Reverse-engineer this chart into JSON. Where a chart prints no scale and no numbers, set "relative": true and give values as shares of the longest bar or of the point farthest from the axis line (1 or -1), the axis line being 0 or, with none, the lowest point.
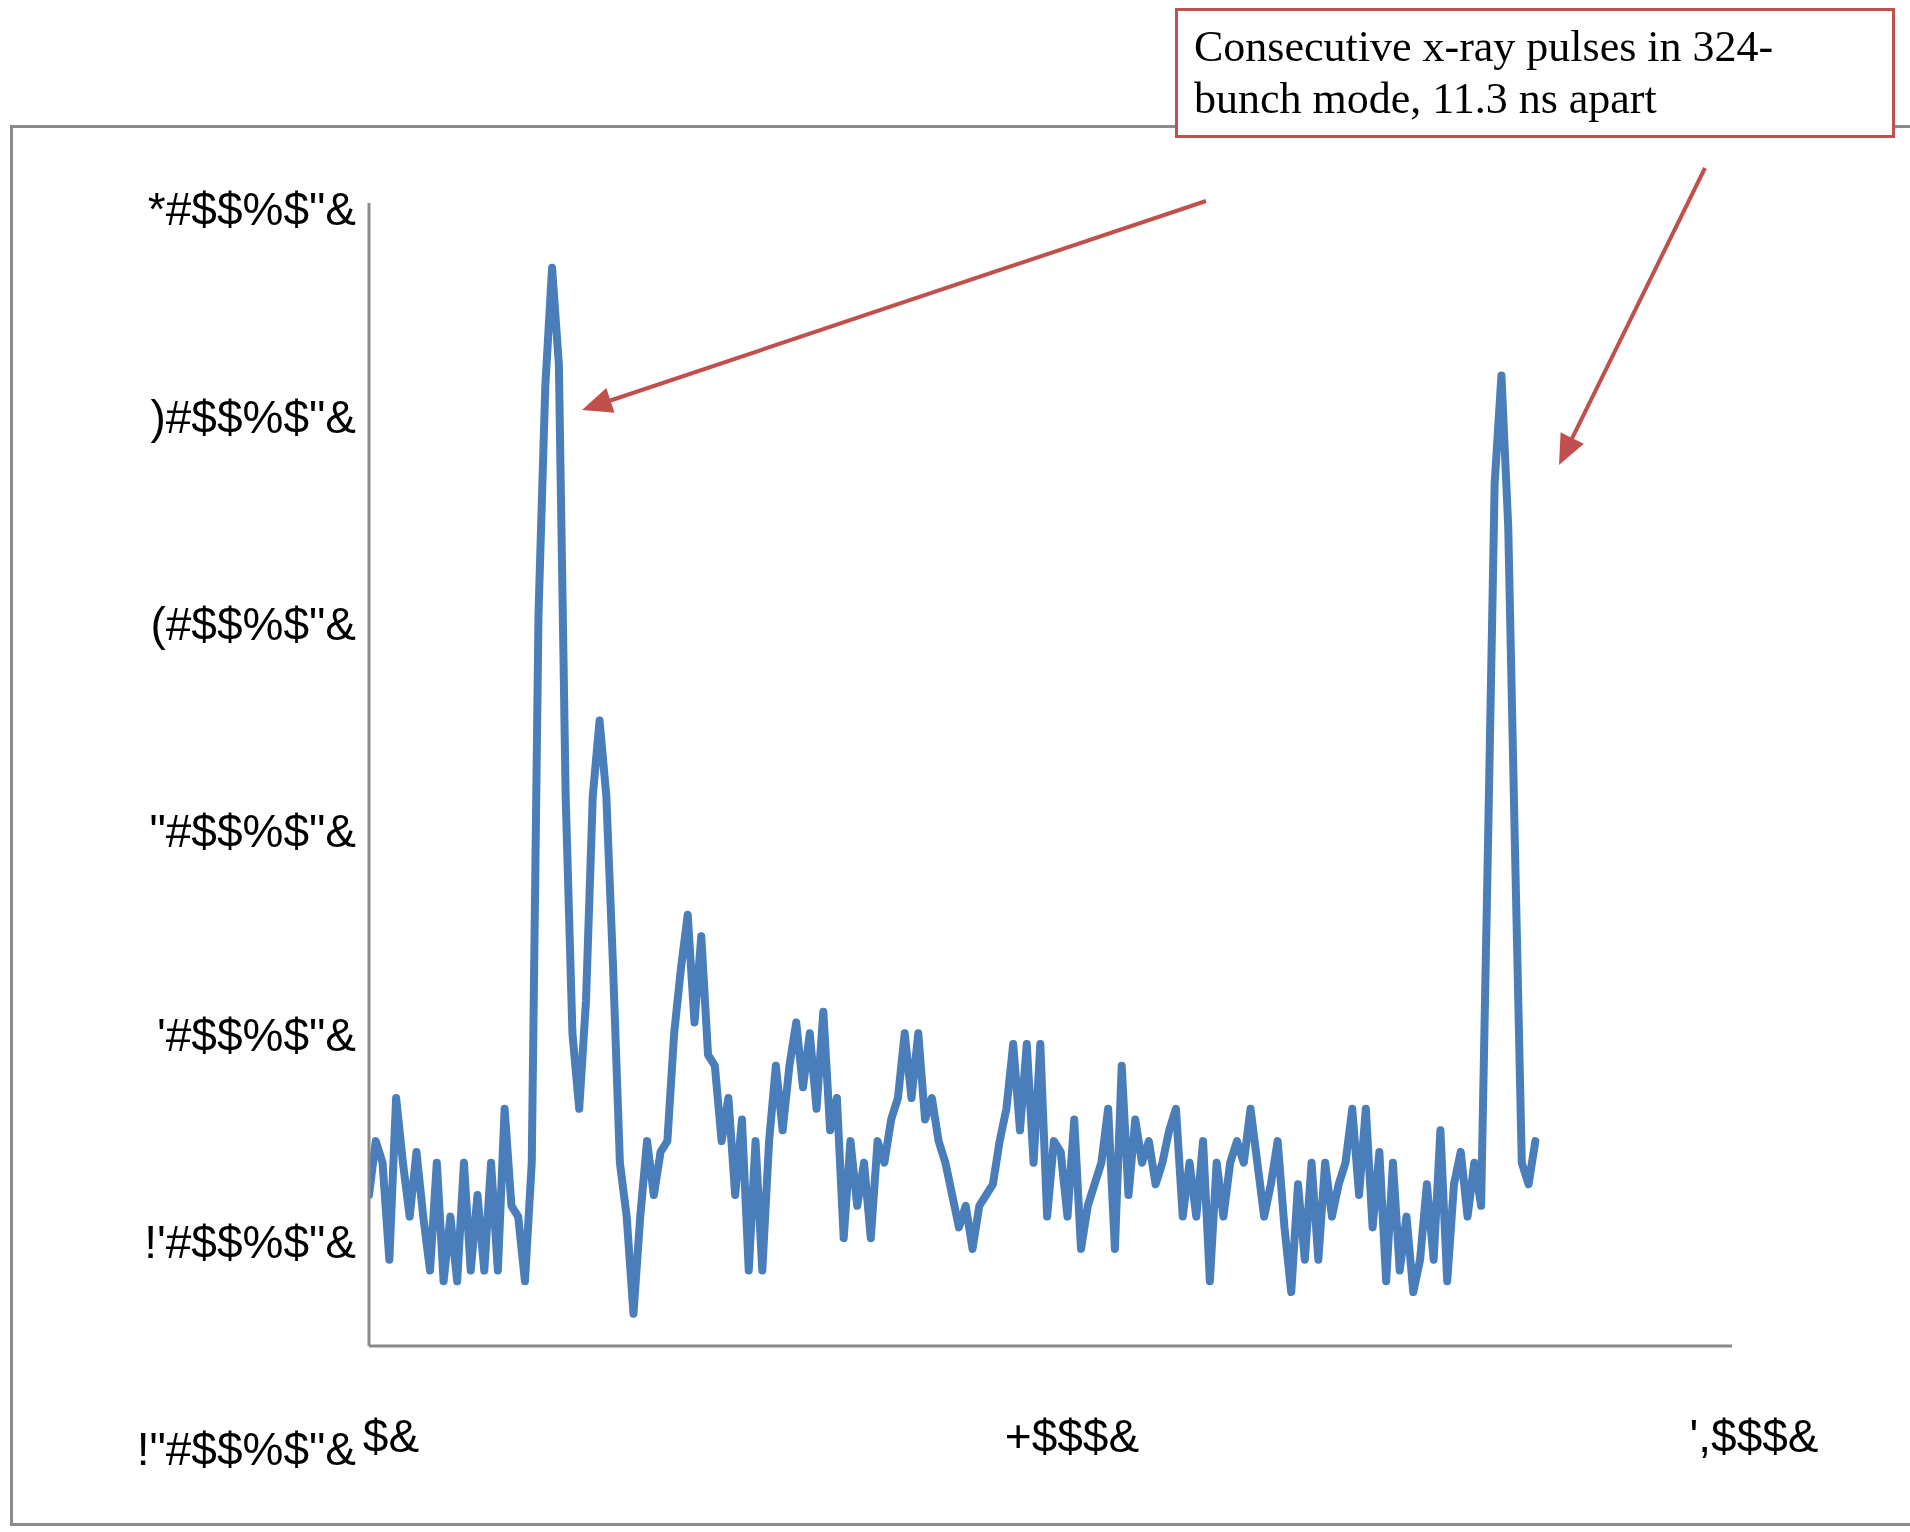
{
  "chart_data": {
    "type": "line",
    "relative": true,
    "annotations": [
      "Consecutive x-ray pulses in 324-bunch mode, 11.3 ns apart",
      "*#$$%$\"&",
      ")#$$%$\"&",
      "(#$$%$\"&",
      "\"#$$%$\"&",
      "'#$$%$\"&",
      "!'#$$%$\"&",
      "!\"#$$%$\"&",
      "$&",
      "+$$$&",
      "',$$$&"
    ],
    "categories": [
      null,
      null,
      null,
      null,
      null,
      null,
      null,
      null,
      null,
      null,
      null,
      null,
      null,
      null,
      null,
      null,
      null,
      null,
      null,
      null,
      null,
      null,
      null,
      null,
      null,
      null,
      null,
      null,
      null,
      null,
      null,
      null,
      null,
      null,
      null,
      null,
      null,
      null,
      null,
      null,
      null,
      null,
      null,
      null,
      null,
      null,
      null,
      null,
      null,
      null,
      null,
      null,
      null,
      null,
      null,
      null,
      null,
      null,
      null,
      null,
      null,
      null,
      null,
      null,
      null,
      null,
      null,
      null,
      null,
      null,
      null,
      null,
      null,
      null,
      null,
      null,
      null,
      null,
      null,
      null,
      null,
      null,
      null,
      null,
      null,
      null,
      null,
      null,
      null,
      null,
      null,
      null,
      null,
      null,
      null,
      null,
      null,
      null,
      null,
      null,
      null,
      null,
      null,
      null,
      null,
      null,
      null,
      null,
      null,
      null,
      null,
      null,
      null,
      null,
      null,
      null,
      null,
      null,
      null,
      null,
      null,
      null,
      null,
      null,
      null,
      null,
      null,
      null,
      null,
      null,
      null,
      null,
      null,
      null,
      null,
      null,
      null,
      null,
      null,
      null,
      null,
      null,
      null,
      null,
      null,
      null,
      null,
      null,
      null,
      null,
      null,
      null,
      null,
      null,
      null,
      null,
      null,
      null,
      null,
      null,
      null,
      null,
      null,
      null,
      null,
      null,
      null,
      null,
      null,
      null,
      null,
      null,
      null,
      null,
      null,
      null,
      null,
      null,
      null,
      null,
      null,
      null,
      null,
      null,
      null,
      null,
      null,
      null,
      null,
      null,
      null,
      null,
      null,
      null,
      null,
      null,
      null,
      null,
      null,
      null,
      null,
      null
    ],
    "grid": false,
    "legend": false,
    "marker": "none",
    "line_style": "solid",
    "series": [
      {
        "color": "#4a7ebb",
        "values": [
          0.14,
          0.19,
          0.17,
          0.08,
          0.23,
          0.17,
          0.12,
          0.18,
          0.12,
          0.07,
          0.17,
          0.06,
          0.12,
          0.06,
          0.17,
          0.07,
          0.14,
          0.07,
          0.17,
          0.07,
          0.22,
          0.13,
          0.12,
          0.06,
          0.17,
          0.68,
          0.89,
          1,
          0.91,
          0.51,
          0.29,
          0.22,
          0.32,
          0.51,
          0.58,
          0.51,
          0.35,
          0.17,
          0.12,
          0.03,
          0.12,
          0.19,
          0.14,
          0.18,
          0.19,
          0.29,
          0.35,
          0.4,
          0.3,
          0.38,
          0.27,
          0.26,
          0.19,
          0.23,
          0.14,
          0.21,
          0.07,
          0.19,
          0.07,
          0.19,
          0.26,
          0.2,
          0.26,
          0.3,
          0.24,
          0.29,
          0.22,
          0.31,
          0.2,
          0.23,
          0.1,
          0.19,
          0.13,
          0.17,
          0.1,
          0.19,
          0.17,
          0.21,
          0.23,
          0.29,
          0.23,
          0.29,
          0.21,
          0.23,
          0.19,
          0.17,
          0.14,
          0.11,
          0.13,
          0.09,
          0.13,
          0.14,
          0.15,
          0.19,
          0.22,
          0.28,
          0.2,
          0.28,
          0.17,
          0.28,
          0.12,
          0.19,
          0.18,
          0.12,
          0.21,
          0.09,
          0.13,
          0.15,
          0.17,
          0.22,
          0.09,
          0.26,
          0.14,
          0.21,
          0.17,
          0.19,
          0.15,
          0.17,
          0.2,
          0.22,
          0.12,
          0.17,
          0.12,
          0.19,
          0.06,
          0.17,
          0.12,
          0.17,
          0.19,
          0.17,
          0.22,
          0.17,
          0.12,
          0.15,
          0.19,
          0.11,
          0.05,
          0.15,
          0.08,
          0.17,
          0.08,
          0.17,
          0.12,
          0.15,
          0.17,
          0.22,
          0.14,
          0.22,
          0.11,
          0.18,
          0.06,
          0.17,
          0.07,
          0.12,
          0.05,
          0.08,
          0.15,
          0.08,
          0.2,
          0.06,
          0.15,
          0.18,
          0.12,
          0.17,
          0.13,
          0.46,
          0.8,
          0.9,
          0.76,
          0.46,
          0.17,
          0.15,
          0.19,
          null,
          null,
          null,
          null,
          null,
          null,
          null,
          null,
          null,
          null,
          null,
          null,
          null,
          null,
          null,
          null,
          null,
          null,
          null,
          null,
          null,
          null,
          null,
          null,
          null,
          null,
          null,
          null,
          null
        ]
      }
    ]
  }
}
